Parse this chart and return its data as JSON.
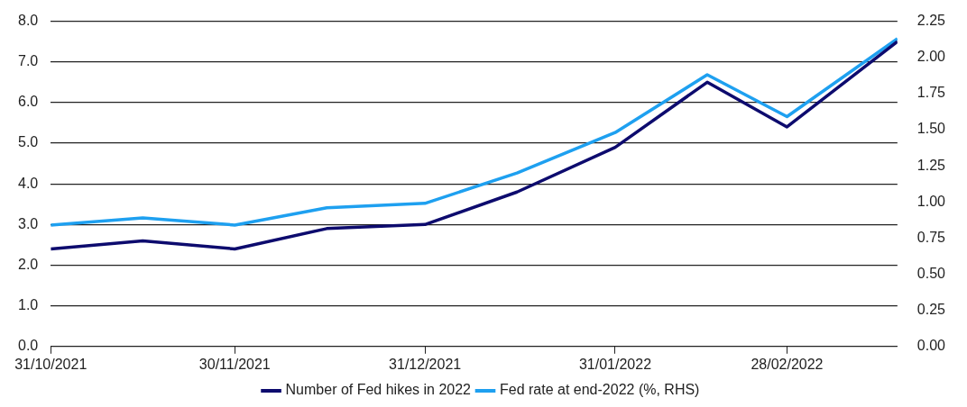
{
  "chart_data": {
    "type": "line",
    "x": [
      "2021-10-31",
      "2021-11-15",
      "2021-11-30",
      "2021-12-15",
      "2021-12-31",
      "2022-01-15",
      "2022-01-31",
      "2022-02-15",
      "2022-02-28",
      "2022-03-18"
    ],
    "series": [
      {
        "name": "Number of Fed hikes in 2022",
        "color": "#0d0b6e",
        "values": [
          2.4,
          2.6,
          2.4,
          2.9,
          3.0,
          3.8,
          4.9,
          6.5,
          5.4,
          7.5
        ]
      },
      {
        "name": "Fed rate at end-2022 (%, RHS)",
        "color": "#1ea0f0",
        "axis": "y2",
        "values": [
          0.84,
          0.89,
          0.84,
          0.96,
          0.99,
          1.2,
          1.48,
          1.88,
          1.59,
          2.13
        ]
      }
    ],
    "xlim": [
      "2021-10-31",
      "2022-03-18"
    ],
    "xticks": [
      {
        "value": "2021-10-31",
        "label": "31/10/2021"
      },
      {
        "value": "2021-11-30",
        "label": "30/11/2021"
      },
      {
        "value": "2021-12-31",
        "label": "31/12/2021"
      },
      {
        "value": "2022-01-31",
        "label": "31/01/2022"
      },
      {
        "value": "2022-02-28",
        "label": "28/02/2022"
      }
    ],
    "ylim": [
      0,
      8
    ],
    "yticks": [
      {
        "value": 0,
        "label": "0.0"
      },
      {
        "value": 1,
        "label": "1.0"
      },
      {
        "value": 2,
        "label": "2.0"
      },
      {
        "value": 3,
        "label": "3.0"
      },
      {
        "value": 4,
        "label": "4.0"
      },
      {
        "value": 5,
        "label": "5.0"
      },
      {
        "value": 6,
        "label": "6.0"
      },
      {
        "value": 7,
        "label": "7.0"
      },
      {
        "value": 8,
        "label": "8.0"
      }
    ],
    "y2lim": [
      0,
      2.25
    ],
    "y2ticks": [
      {
        "value": 0,
        "label": "0.00"
      },
      {
        "value": 0.25,
        "label": "0.25"
      },
      {
        "value": 0.5,
        "label": "0.50"
      },
      {
        "value": 0.75,
        "label": "0.75"
      },
      {
        "value": 1,
        "label": "1.00"
      },
      {
        "value": 1.25,
        "label": "1.25"
      },
      {
        "value": 1.5,
        "label": "1.50"
      },
      {
        "value": 1.75,
        "label": "1.75"
      },
      {
        "value": 2,
        "label": "2.00"
      },
      {
        "value": 2.25,
        "label": "2.25"
      }
    ],
    "grid": "y",
    "legend": "bottom",
    "marker": "none",
    "line_style": "solid"
  }
}
